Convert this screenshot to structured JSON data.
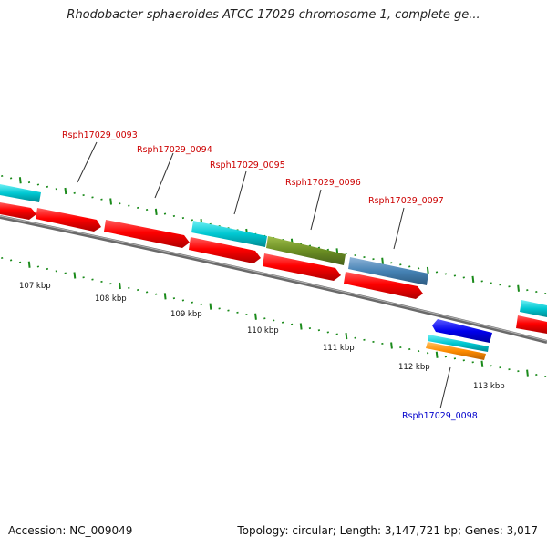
{
  "title": "Rhodobacter sphaeroides ATCC 17029 chromosome 1, complete ge...",
  "footer": {
    "accession": "Accession: NC_009049",
    "topology": "Topology: circular; Length: 3,147,721 bp; Genes: 3,017"
  },
  "colors": {
    "backbone": "#7a7a7a",
    "forward_strand_gene": "#ff0000",
    "cyan_feature": "#00c8d2",
    "olive_feature": "#6b8e23",
    "steelblue_feature": "#4682b4",
    "blue_feature": "#0000ee",
    "orange_feature": "#ff8c00",
    "tick_mark": "#1a8a1a",
    "label_forward": "#cc0000",
    "label_reverse": "#0000cc"
  },
  "scale_labels": [
    "107 kbp",
    "108 kbp",
    "109 kbp",
    "110 kbp",
    "111 kbp",
    "112 kbp",
    "113 kbp"
  ],
  "gene_labels": [
    {
      "text": "Rsph17029_0093",
      "color": "label_forward"
    },
    {
      "text": "Rsph17029_0094",
      "color": "label_forward"
    },
    {
      "text": "Rsph17029_0095",
      "color": "label_forward"
    },
    {
      "text": "Rsph17029_0096",
      "color": "label_forward"
    },
    {
      "text": "Rsph17029_0097",
      "color": "label_forward"
    },
    {
      "text": "Rsph17029_0098",
      "color": "label_reverse"
    }
  ]
}
